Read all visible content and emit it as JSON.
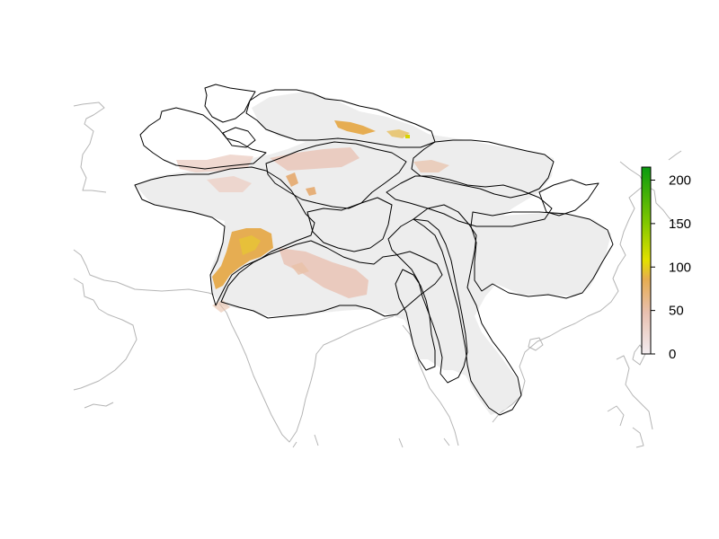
{
  "map": {
    "type": "raster-map",
    "region": "South and East Asia river basins",
    "raster_fill_color": "#eeeeee",
    "basin_border_color": "#000000",
    "coastline_color": "#b5b5b5"
  },
  "legend": {
    "position": "right",
    "min": 0,
    "max": 215,
    "ticks": [
      "200",
      "150",
      "100",
      "50",
      "0"
    ],
    "tick_values": [
      200,
      150,
      100,
      50,
      0
    ],
    "colors": [
      "#f2eaee",
      "#e8c0b0",
      "#e6ac50",
      "#e4e000",
      "#82c800",
      "#0a9a10"
    ]
  }
}
